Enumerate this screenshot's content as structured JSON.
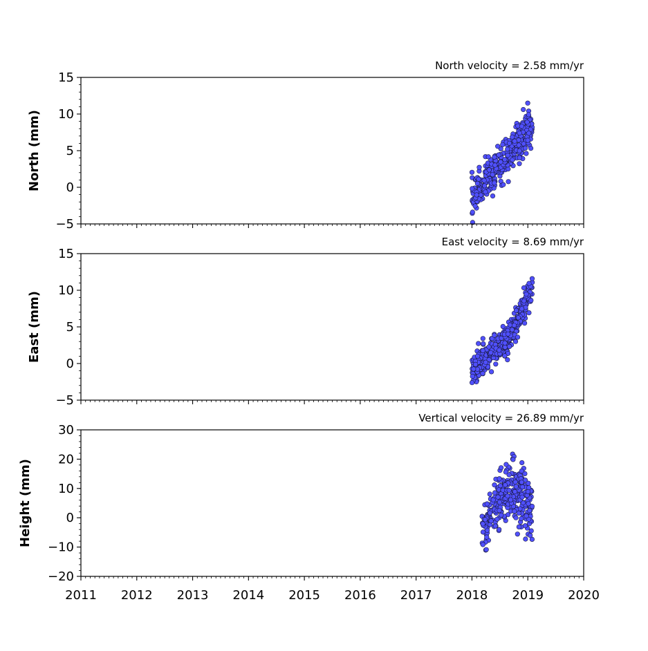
{
  "chart_data": [
    {
      "type": "scatter",
      "title": "North velocity = 2.58 mm/yr",
      "ylabel": "North (mm)",
      "xlabel": "",
      "xlim": [
        2011,
        2020
      ],
      "ylim": [
        -5,
        15
      ],
      "yticks": [
        -5,
        0,
        5,
        10,
        15
      ],
      "marker_color": "#5050ff",
      "marker_edge": "#1a1a40",
      "series": [
        {
          "x_start": 2018.0,
          "x_end": 2019.08,
          "y_start": -1.5,
          "y_end": 8.5,
          "noise": 1.3,
          "count": 360
        }
      ]
    },
    {
      "type": "scatter",
      "title": "East velocity = 8.69 mm/yr",
      "ylabel": "East (mm)",
      "xlabel": "",
      "xlim": [
        2011,
        2020
      ],
      "ylim": [
        -5,
        15
      ],
      "yticks": [
        -5,
        0,
        5,
        10,
        15
      ],
      "marker_color": "#5050ff",
      "marker_edge": "#1a1a40",
      "series": [
        {
          "x_start": 2018.0,
          "x_end": 2019.08,
          "profile": [
            [
              2018.05,
              -0.8
            ],
            [
              2018.3,
              1.0
            ],
            [
              2018.55,
              2.5
            ],
            [
              2018.7,
              4.0
            ],
            [
              2019.08,
              10.5
            ]
          ],
          "noise": 1.0,
          "count": 360
        }
      ]
    },
    {
      "type": "scatter",
      "title": "Vertical velocity = 26.89 mm/yr",
      "ylabel": "Height (mm)",
      "xlabel": "",
      "xlim": [
        2011,
        2020
      ],
      "ylim": [
        -20,
        30
      ],
      "yticks": [
        -20,
        -10,
        0,
        10,
        20,
        30
      ],
      "xticks": [
        2011,
        2012,
        2013,
        2014,
        2015,
        2016,
        2017,
        2018,
        2019,
        2020
      ],
      "marker_color": "#5050ff",
      "marker_edge": "#1a1a40",
      "series": [
        {
          "x_start": 2018.18,
          "x_end": 2019.08,
          "profile": [
            [
              2018.2,
              -4.0
            ],
            [
              2018.4,
              3.0
            ],
            [
              2018.6,
              9.0
            ],
            [
              2018.8,
              9.0
            ],
            [
              2019.0,
              5.0
            ],
            [
              2019.08,
              3.0
            ]
          ],
          "noise": 5.0,
          "count": 320
        }
      ]
    }
  ]
}
